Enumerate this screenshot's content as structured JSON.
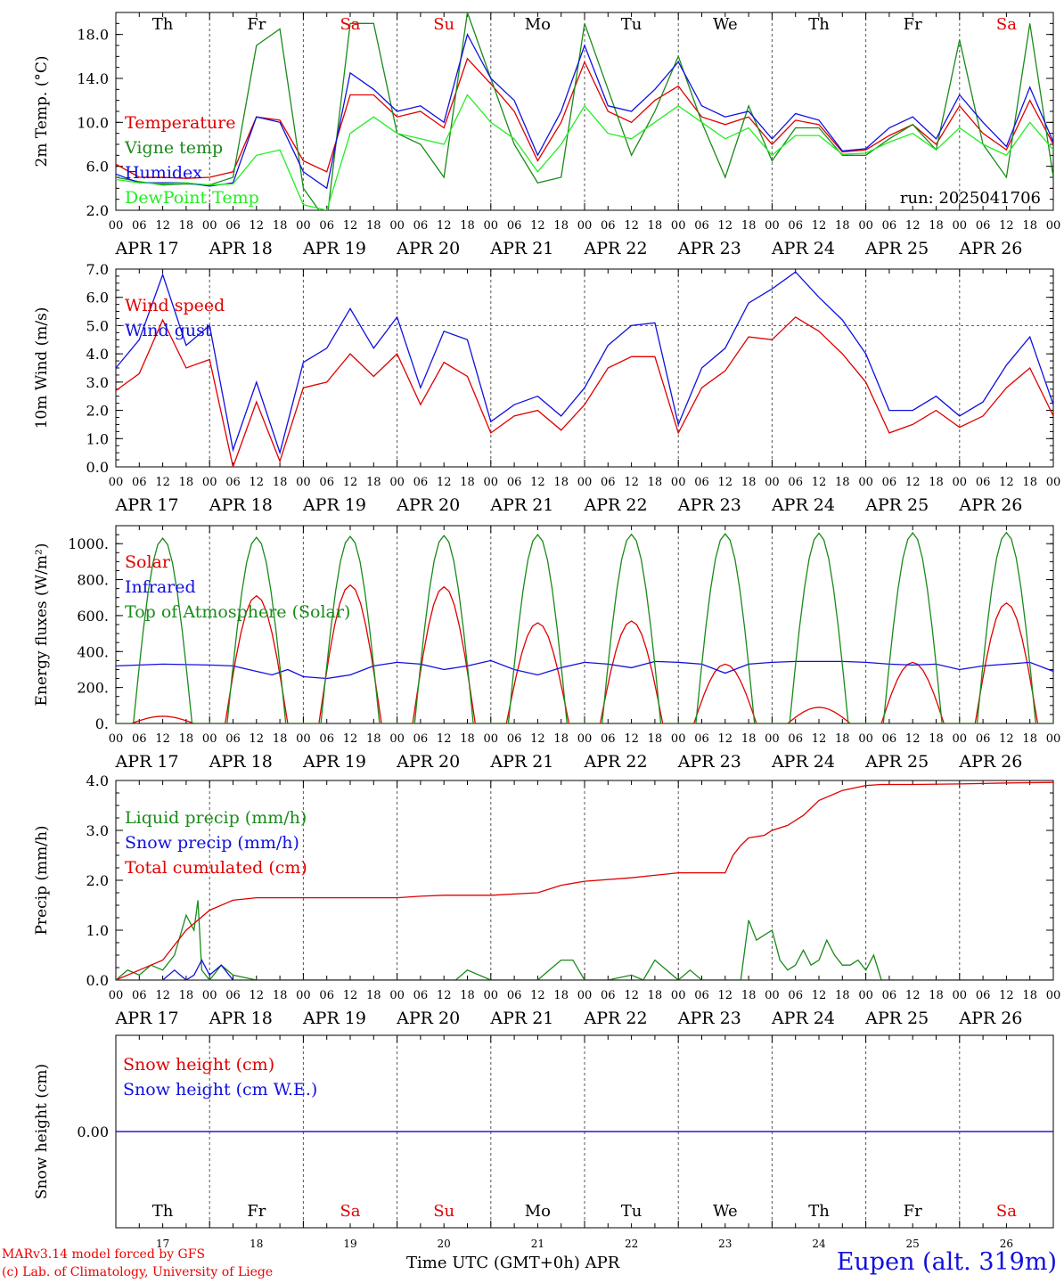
{
  "footer": {
    "credit1": "MARv3.14 model forced by GFS",
    "credit2": "(c) Lab. of Climatology, University of Liege",
    "xtitle": "Time UTC (GMT+0h) APR",
    "location": "Eupen (alt. 319m)"
  },
  "colors": {
    "red": "#e00000",
    "green": "#1a8a1a",
    "blue": "#1010e0",
    "lightgreen": "#22ee22",
    "grid": "#555555"
  },
  "chart_data": [
    {
      "type": "line",
      "id": "temp",
      "ylabel": "2m Temp. (°C)",
      "ylim": [
        2,
        20
      ],
      "yticks": [
        "2.0",
        "6.0",
        "10.0",
        "14.0",
        "18.0"
      ],
      "ytick_values": [
        2,
        6,
        10,
        14,
        18
      ],
      "day_names": [
        "Th",
        "Fr",
        "Sa",
        "Su",
        "Mo",
        "Tu",
        "We",
        "Th",
        "Fr",
        "Sa"
      ],
      "weekend_color_days": [
        2,
        3,
        9
      ],
      "annotation": "run: 2025041706",
      "x_hours": [
        0,
        6,
        12,
        18,
        24,
        30,
        36,
        42,
        48,
        54,
        60,
        66,
        72,
        78,
        84,
        90,
        96,
        102,
        108,
        114,
        120,
        126,
        132,
        138,
        144,
        150,
        156,
        162,
        168,
        174,
        180,
        186,
        192,
        198,
        204,
        210,
        216,
        222,
        228,
        234,
        240
      ],
      "series": [
        {
          "name": "Temperature",
          "color": "red",
          "values": [
            6.2,
            5.0,
            5.0,
            4.9,
            5.0,
            5.5,
            10.5,
            10.2,
            6.5,
            5.5,
            12.5,
            12.5,
            10.5,
            11.0,
            9.5,
            15.8,
            13.5,
            11.0,
            6.5,
            10.0,
            15.5,
            11.0,
            10.0,
            12.0,
            13.3,
            10.5,
            9.8,
            10.5,
            8.0,
            10.2,
            9.8,
            7.3,
            7.5,
            8.8,
            9.8,
            8.0,
            11.5,
            9.0,
            7.5,
            12.0,
            8.0
          ]
        },
        {
          "name": "Vigne temp",
          "color": "green",
          "values": [
            5.0,
            4.6,
            4.3,
            4.4,
            4.3,
            5.0,
            17.0,
            18.5,
            4.0,
            1.0,
            19.0,
            19.0,
            9.0,
            8.0,
            5.0,
            20.0,
            14.0,
            8.0,
            4.5,
            5.0,
            19.0,
            13.0,
            7.0,
            11.0,
            16.0,
            10.0,
            5.0,
            11.5,
            6.5,
            9.5,
            9.5,
            7.0,
            7.0,
            8.5,
            9.8,
            7.5,
            17.5,
            8.0,
            5.0,
            19.0,
            5.0
          ]
        },
        {
          "name": "Humidex",
          "color": "blue",
          "values": [
            5.3,
            4.5,
            4.5,
            4.5,
            4.2,
            4.5,
            10.5,
            10.0,
            5.5,
            4.0,
            14.5,
            13.0,
            11.0,
            11.5,
            10.0,
            18.0,
            14.0,
            12.0,
            7.0,
            11.0,
            17.0,
            11.5,
            11.0,
            13.0,
            15.5,
            11.5,
            10.5,
            11.0,
            8.5,
            10.8,
            10.2,
            7.4,
            7.6,
            9.5,
            10.5,
            8.5,
            12.5,
            10.0,
            7.8,
            13.2,
            8.2
          ]
        },
        {
          "name": "DewPoint Temp",
          "color": "lightgreen",
          "values": [
            4.8,
            4.5,
            4.4,
            4.5,
            4.3,
            4.4,
            7.0,
            7.5,
            2.5,
            2.0,
            9.0,
            10.5,
            9.0,
            8.5,
            8.0,
            12.5,
            10.0,
            8.5,
            5.5,
            8.0,
            11.5,
            9.0,
            8.5,
            10.0,
            11.5,
            10.0,
            8.5,
            9.5,
            7.0,
            8.8,
            8.8,
            7.1,
            7.2,
            8.2,
            9.0,
            7.5,
            9.5,
            8.0,
            7.0,
            10.0,
            7.5
          ]
        }
      ]
    },
    {
      "type": "line",
      "id": "wind",
      "ylabel": "10m Wind (m/s)",
      "ylim": [
        0,
        7
      ],
      "yticks": [
        "0.0",
        "1.0",
        "2.0",
        "3.0",
        "4.0",
        "5.0",
        "6.0",
        "7.0"
      ],
      "ytick_values": [
        0,
        1,
        2,
        3,
        4,
        5,
        6,
        7
      ],
      "reference_line": 5,
      "x_hours": [
        0,
        6,
        12,
        18,
        24,
        30,
        36,
        42,
        48,
        54,
        60,
        66,
        72,
        78,
        84,
        90,
        96,
        102,
        108,
        114,
        120,
        126,
        132,
        138,
        144,
        150,
        156,
        162,
        168,
        174,
        180,
        186,
        192,
        198,
        204,
        210,
        216,
        222,
        228,
        234,
        240
      ],
      "series": [
        {
          "name": "Wind speed",
          "color": "red",
          "values": [
            2.7,
            3.3,
            5.2,
            3.5,
            3.8,
            0.0,
            2.3,
            0.2,
            2.8,
            3.0,
            4.0,
            3.2,
            4.0,
            2.2,
            3.7,
            3.2,
            1.2,
            1.8,
            2.0,
            1.3,
            2.2,
            3.5,
            3.9,
            3.9,
            1.2,
            2.8,
            3.4,
            4.6,
            4.5,
            5.3,
            4.8,
            4.0,
            3.0,
            1.2,
            1.5,
            2.0,
            1.4,
            1.8,
            2.8,
            3.5,
            1.8
          ]
        },
        {
          "name": "Wind gust",
          "color": "blue",
          "values": [
            3.5,
            4.5,
            6.8,
            4.3,
            5.0,
            0.6,
            3.0,
            0.5,
            3.7,
            4.2,
            5.6,
            4.2,
            5.3,
            2.8,
            4.8,
            4.5,
            1.6,
            2.2,
            2.5,
            1.8,
            2.8,
            4.3,
            5.0,
            5.1,
            1.5,
            3.5,
            4.2,
            5.8,
            6.3,
            6.9,
            6.0,
            5.2,
            4.0,
            2.0,
            2.0,
            2.5,
            1.8,
            2.3,
            3.6,
            4.6,
            2.2
          ]
        }
      ]
    },
    {
      "type": "line",
      "id": "energy",
      "ylabel": "Energy fluxes (W/m²)",
      "ylim": [
        0,
        1100
      ],
      "yticks": [
        "0.",
        "200.",
        "400.",
        "600.",
        "800.",
        "1000."
      ],
      "ytick_values": [
        0,
        200,
        400,
        600,
        800,
        1000
      ],
      "series": [
        {
          "name": "Solar",
          "color": "red",
          "peaks": [
            {
              "start": 4,
              "end": 20,
              "peak": 40
            },
            {
              "start": 28,
              "end": 44,
              "peak": 710
            },
            {
              "start": 52,
              "end": 68,
              "peak": 770
            },
            {
              "start": 76,
              "end": 92,
              "peak": 760
            },
            {
              "start": 100,
              "end": 116,
              "peak": 560
            },
            {
              "start": 124,
              "end": 140,
              "peak": 570
            },
            {
              "start": 148,
              "end": 164,
              "peak": 330
            },
            {
              "start": 172,
              "end": 188,
              "peak": 90
            },
            {
              "start": 196,
              "end": 212,
              "peak": 340
            },
            {
              "start": 220,
              "end": 236,
              "peak": 670
            }
          ]
        },
        {
          "name": "Infrared",
          "color": "blue",
          "x_hours": [
            0,
            12,
            24,
            30,
            36,
            40,
            44,
            48,
            54,
            60,
            66,
            72,
            78,
            84,
            90,
            96,
            102,
            108,
            114,
            120,
            126,
            132,
            138,
            144,
            150,
            156,
            162,
            168,
            174,
            180,
            186,
            192,
            198,
            204,
            210,
            216,
            222,
            228,
            234,
            240
          ],
          "values": [
            320,
            330,
            325,
            320,
            290,
            270,
            300,
            260,
            250,
            270,
            320,
            340,
            330,
            300,
            320,
            350,
            300,
            270,
            310,
            340,
            330,
            310,
            345,
            340,
            330,
            280,
            330,
            340,
            345,
            345,
            345,
            340,
            330,
            325,
            330,
            300,
            320,
            330,
            340,
            290
          ]
        },
        {
          "name": "Top of Atmosphere (Solar)",
          "color": "green",
          "peaks": [
            {
              "start": 4.5,
              "end": 19.5,
              "peak": 1030
            },
            {
              "start": 28.5,
              "end": 43.5,
              "peak": 1035
            },
            {
              "start": 52.5,
              "end": 67.5,
              "peak": 1040
            },
            {
              "start": 76.5,
              "end": 91.5,
              "peak": 1045
            },
            {
              "start": 100.5,
              "end": 115.5,
              "peak": 1050
            },
            {
              "start": 124.5,
              "end": 139.5,
              "peak": 1052
            },
            {
              "start": 148.5,
              "end": 163.5,
              "peak": 1055
            },
            {
              "start": 172.5,
              "end": 187.5,
              "peak": 1058
            },
            {
              "start": 196.5,
              "end": 211.5,
              "peak": 1060
            },
            {
              "start": 220.5,
              "end": 235.5,
              "peak": 1062
            }
          ]
        }
      ]
    },
    {
      "type": "line",
      "id": "precip",
      "ylabel": "Precip (mm/h)",
      "ylim": [
        0,
        4
      ],
      "yticks": [
        "0.0",
        "1.0",
        "2.0",
        "3.0",
        "4.0"
      ],
      "ytick_values": [
        0,
        1,
        2,
        3,
        4
      ],
      "series": [
        {
          "name": "Liquid precip (mm/h)",
          "color": "green",
          "x_hours": [
            0,
            3,
            6,
            9,
            12,
            15,
            18,
            20,
            21,
            22,
            24,
            27,
            30,
            36,
            42,
            48,
            60,
            72,
            84,
            87,
            90,
            96,
            108,
            111,
            114,
            117,
            120,
            126,
            132,
            135,
            138,
            144,
            147,
            150,
            156,
            160,
            162,
            164,
            166,
            168,
            170,
            172,
            174,
            176,
            178,
            180,
            182,
            184,
            186,
            188,
            190,
            192,
            194,
            196,
            198,
            200,
            202,
            204,
            240
          ],
          "values": [
            0,
            0.2,
            0.1,
            0.3,
            0.2,
            0.5,
            1.3,
            1.0,
            1.6,
            0.2,
            0.0,
            0.3,
            0.1,
            0.0,
            0.0,
            0.0,
            0.0,
            0.0,
            0.0,
            0.0,
            0.2,
            0.0,
            0.0,
            0.2,
            0.4,
            0.4,
            0.0,
            0.0,
            0.1,
            0.0,
            0.4,
            0.0,
            0.2,
            0.0,
            0.0,
            0.0,
            1.2,
            0.8,
            0.9,
            1.0,
            0.4,
            0.2,
            0.3,
            0.6,
            0.3,
            0.4,
            0.8,
            0.5,
            0.3,
            0.3,
            0.4,
            0.2,
            0.5,
            0.0,
            0.0,
            0.0,
            0.0,
            0.0,
            0.0
          ]
        },
        {
          "name": "Snow precip (mm/h)",
          "color": "blue",
          "x_hours": [
            0,
            12,
            15,
            18,
            20,
            22,
            24,
            27,
            30,
            36,
            240
          ],
          "values": [
            0,
            0,
            0.2,
            0,
            0.1,
            0.4,
            0.1,
            0.3,
            0,
            0,
            0
          ]
        },
        {
          "name": "Total cumulated (cm)",
          "color": "red",
          "x_hours": [
            0,
            6,
            12,
            18,
            24,
            30,
            36,
            60,
            72,
            78,
            84,
            96,
            108,
            114,
            120,
            132,
            138,
            144,
            150,
            156,
            158,
            160,
            162,
            166,
            168,
            172,
            174,
            176,
            180,
            186,
            192,
            196,
            198,
            204,
            216,
            228,
            240
          ],
          "values": [
            0,
            0.2,
            0.4,
            1.0,
            1.4,
            1.6,
            1.65,
            1.65,
            1.65,
            1.68,
            1.7,
            1.7,
            1.75,
            1.9,
            1.98,
            2.05,
            2.1,
            2.15,
            2.15,
            2.15,
            2.5,
            2.7,
            2.85,
            2.9,
            3.0,
            3.1,
            3.2,
            3.3,
            3.6,
            3.8,
            3.9,
            3.92,
            3.92,
            3.92,
            3.93,
            3.95,
            3.96
          ]
        }
      ]
    },
    {
      "type": "line",
      "id": "snow",
      "ylabel": "Snow height (cm)",
      "ylim": [
        -1,
        1
      ],
      "yticks": [
        "0.00"
      ],
      "ytick_values": [
        0
      ],
      "day_names": [
        "Th",
        "Fr",
        "Sa",
        "Su",
        "Mo",
        "Tu",
        "We",
        "Th",
        "Fr",
        "Sa"
      ],
      "day_numbers": [
        "17",
        "18",
        "19",
        "20",
        "21",
        "22",
        "23",
        "24",
        "25",
        "26"
      ],
      "series": [
        {
          "name": "Snow height (cm)",
          "color": "red",
          "x_hours": [
            0,
            240
          ],
          "values": [
            0,
            0
          ]
        },
        {
          "name": "Snow height (cm W.E.)",
          "color": "blue",
          "x_hours": [
            0,
            240
          ],
          "values": [
            0,
            0
          ]
        }
      ]
    }
  ],
  "x_axis": {
    "hour_ticks": [
      "00",
      "06",
      "12",
      "18"
    ],
    "date_labels": [
      "APR 17",
      "APR 18",
      "APR 19",
      "APR 20",
      "APR 21",
      "APR 22",
      "APR 23",
      "APR 24",
      "APR 25",
      "APR 26"
    ]
  }
}
